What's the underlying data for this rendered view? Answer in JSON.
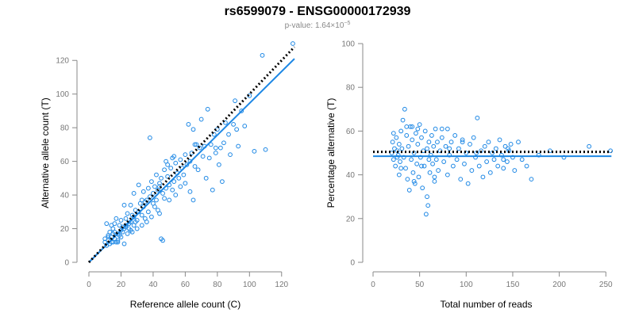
{
  "title": "rs6599079 - ENSG00000172939",
  "subtitle_prefix": "p-value: 1.64×10",
  "subtitle_exponent": "−5",
  "colors": {
    "points": "#1e88e5",
    "fit": "#1e88e5",
    "reference": "#000000",
    "axis": "#888888"
  },
  "chart_data": [
    {
      "type": "scatter",
      "xlabel": "Reference allele count (C)",
      "ylabel": "Alternative allele count (T)",
      "xlim": [
        0,
        130
      ],
      "ylim": [
        0,
        130
      ],
      "xticks": [
        "0",
        "20",
        "40",
        "60",
        "80",
        "100",
        "120"
      ],
      "yticks": [
        "0",
        "20",
        "40",
        "60",
        "80",
        "100",
        "120"
      ],
      "fit_line": {
        "from": [
          0,
          0
        ],
        "to": [
          128,
          121
        ]
      },
      "reference_line": {
        "from": [
          0,
          0
        ],
        "to": [
          128,
          128
        ]
      },
      "points": [
        [
          10,
          12
        ],
        [
          10,
          14
        ],
        [
          11,
          10
        ],
        [
          11,
          23
        ],
        [
          12,
          13
        ],
        [
          12,
          16
        ],
        [
          13,
          11
        ],
        [
          13,
          18
        ],
        [
          14,
          12
        ],
        [
          14,
          15
        ],
        [
          15,
          12
        ],
        [
          15,
          20
        ],
        [
          16,
          14
        ],
        [
          16,
          23
        ],
        [
          17,
          12
        ],
        [
          17,
          26
        ],
        [
          18,
          17
        ],
        [
          18,
          13
        ],
        [
          19,
          22
        ],
        [
          20,
          15
        ],
        [
          20,
          19
        ],
        [
          20,
          25
        ],
        [
          21,
          18
        ],
        [
          21,
          21
        ],
        [
          22,
          20
        ],
        [
          22,
          34
        ],
        [
          23,
          22
        ],
        [
          23,
          26
        ],
        [
          24,
          17
        ],
        [
          24,
          29
        ],
        [
          25,
          23
        ],
        [
          25,
          20
        ],
        [
          26,
          34
        ],
        [
          26,
          24
        ],
        [
          27,
          28
        ],
        [
          27,
          18
        ],
        [
          28,
          27
        ],
        [
          28,
          41
        ],
        [
          29,
          31
        ],
        [
          30,
          25
        ],
        [
          30,
          20
        ],
        [
          31,
          46
        ],
        [
          31,
          30
        ],
        [
          32,
          35
        ],
        [
          33,
          22
        ],
        [
          33,
          28
        ],
        [
          34,
          33
        ],
        [
          34,
          42
        ],
        [
          35,
          36
        ],
        [
          35,
          26
        ],
        [
          36,
          37
        ],
        [
          37,
          44
        ],
        [
          37,
          30
        ],
        [
          38,
          39
        ],
        [
          39,
          27
        ],
        [
          39,
          48
        ],
        [
          40,
          41
        ],
        [
          40,
          35
        ],
        [
          41,
          45
        ],
        [
          42,
          37
        ],
        [
          42,
          52
        ],
        [
          43,
          31
        ],
        [
          43,
          43
        ],
        [
          44,
          47
        ],
        [
          44,
          29
        ],
        [
          45,
          14
        ],
        [
          45,
          50
        ],
        [
          46,
          13
        ],
        [
          46,
          41
        ],
        [
          47,
          55
        ],
        [
          47,
          38
        ],
        [
          48,
          44
        ],
        [
          48,
          60
        ],
        [
          49,
          51
        ],
        [
          50,
          46
        ],
        [
          50,
          37
        ],
        [
          51,
          56
        ],
        [
          52,
          43
        ],
        [
          52,
          62
        ],
        [
          53,
          48
        ],
        [
          54,
          59
        ],
        [
          54,
          40
        ],
        [
          55,
          53
        ],
        [
          56,
          50
        ],
        [
          57,
          61
        ],
        [
          57,
          45
        ],
        [
          58,
          56
        ],
        [
          59,
          52
        ],
        [
          60,
          64
        ],
        [
          60,
          47
        ],
        [
          61,
          58
        ],
        [
          62,
          82
        ],
        [
          63,
          60
        ],
        [
          63,
          42
        ],
        [
          64,
          65
        ],
        [
          65,
          37
        ],
        [
          65,
          79
        ],
        [
          66,
          57
        ],
        [
          67,
          70
        ],
        [
          68,
          55
        ],
        [
          69,
          68
        ],
        [
          70,
          85
        ],
        [
          71,
          63
        ],
        [
          72,
          69
        ],
        [
          73,
          50
        ],
        [
          74,
          91
        ],
        [
          75,
          62
        ],
        [
          76,
          70
        ],
        [
          77,
          43
        ],
        [
          78,
          76
        ],
        [
          79,
          65
        ],
        [
          80,
          79
        ],
        [
          81,
          58
        ],
        [
          82,
          68
        ],
        [
          83,
          48
        ],
        [
          84,
          71
        ],
        [
          85,
          83
        ],
        [
          87,
          76
        ],
        [
          88,
          64
        ],
        [
          90,
          82
        ],
        [
          91,
          96
        ],
        [
          92,
          79
        ],
        [
          93,
          69
        ],
        [
          95,
          90
        ],
        [
          97,
          81
        ],
        [
          100,
          99
        ],
        [
          103,
          66
        ],
        [
          108,
          123
        ],
        [
          110,
          67
        ],
        [
          127,
          130
        ],
        [
          38,
          74
        ],
        [
          53,
          63
        ],
        [
          66,
          70
        ],
        [
          79,
          68
        ],
        [
          44,
          45
        ],
        [
          36,
          24
        ],
        [
          28,
          22
        ],
        [
          22,
          11
        ],
        [
          18,
          12
        ],
        [
          15,
          17
        ],
        [
          12,
          15
        ],
        [
          14,
          22
        ],
        [
          16,
          18
        ],
        [
          19,
          16
        ],
        [
          23,
          21
        ],
        [
          26,
          19
        ],
        [
          29,
          24
        ],
        [
          33,
          37
        ],
        [
          41,
          33
        ],
        [
          49,
          58
        ]
      ]
    },
    {
      "type": "scatter",
      "xlabel": "Total number of reads",
      "ylabel": "Percentage alternative (T)",
      "xlim": [
        0,
        260
      ],
      "ylim": [
        0,
        100
      ],
      "xticks": [
        "0",
        "50",
        "100",
        "150",
        "200",
        "250"
      ],
      "yticks": [
        "0",
        "20",
        "40",
        "60",
        "80",
        "100"
      ],
      "fit_line": {
        "from": [
          0,
          48.5
        ],
        "to": [
          256,
          48.5
        ]
      },
      "reference_line": {
        "from": [
          0,
          50.5
        ],
        "to": [
          256,
          50.5
        ]
      },
      "points": [
        [
          20,
          50
        ],
        [
          21,
          55
        ],
        [
          22,
          47
        ],
        [
          23,
          52
        ],
        [
          24,
          44
        ],
        [
          25,
          57
        ],
        [
          26,
          51
        ],
        [
          27,
          49
        ],
        [
          28,
          54
        ],
        [
          29,
          46
        ],
        [
          30,
          60
        ],
        [
          31,
          52
        ],
        [
          32,
          65
        ],
        [
          33,
          48
        ],
        [
          34,
          70
        ],
        [
          35,
          43
        ],
        [
          36,
          58
        ],
        [
          37,
          38
        ],
        [
          38,
          53
        ],
        [
          39,
          33
        ],
        [
          40,
          62
        ],
        [
          41,
          47
        ],
        [
          42,
          56
        ],
        [
          43,
          41
        ],
        [
          44,
          50
        ],
        [
          45,
          36
        ],
        [
          46,
          59
        ],
        [
          47,
          45
        ],
        [
          48,
          54
        ],
        [
          49,
          39
        ],
        [
          50,
          63
        ],
        [
          51,
          48
        ],
        [
          52,
          57
        ],
        [
          53,
          34
        ],
        [
          54,
          51
        ],
        [
          55,
          44
        ],
        [
          56,
          60
        ],
        [
          57,
          22
        ],
        [
          58,
          52
        ],
        [
          59,
          26
        ],
        [
          60,
          55
        ],
        [
          61,
          41
        ],
        [
          62,
          49
        ],
        [
          63,
          58
        ],
        [
          64,
          45
        ],
        [
          65,
          53
        ],
        [
          66,
          37
        ],
        [
          67,
          61
        ],
        [
          68,
          47
        ],
        [
          69,
          55
        ],
        [
          70,
          42
        ],
        [
          72,
          51
        ],
        [
          74,
          57
        ],
        [
          76,
          46
        ],
        [
          78,
          53
        ],
        [
          80,
          40
        ],
        [
          82,
          49
        ],
        [
          84,
          55
        ],
        [
          86,
          44
        ],
        [
          88,
          58
        ],
        [
          90,
          47
        ],
        [
          92,
          52
        ],
        [
          94,
          38
        ],
        [
          96,
          56
        ],
        [
          98,
          45
        ],
        [
          100,
          50
        ],
        [
          102,
          36
        ],
        [
          104,
          54
        ],
        [
          106,
          42
        ],
        [
          108,
          57
        ],
        [
          110,
          48
        ],
        [
          112,
          66
        ],
        [
          114,
          44
        ],
        [
          116,
          51
        ],
        [
          118,
          39
        ],
        [
          120,
          53
        ],
        [
          122,
          46
        ],
        [
          124,
          55
        ],
        [
          126,
          41
        ],
        [
          128,
          50
        ],
        [
          130,
          47
        ],
        [
          132,
          52
        ],
        [
          134,
          44
        ],
        [
          136,
          56
        ],
        [
          138,
          49
        ],
        [
          140,
          43
        ],
        [
          142,
          53
        ],
        [
          144,
          46
        ],
        [
          146,
          51
        ],
        [
          148,
          54
        ],
        [
          150,
          48
        ],
        [
          152,
          42
        ],
        [
          156,
          55
        ],
        [
          160,
          47
        ],
        [
          165,
          44
        ],
        [
          170,
          38
        ],
        [
          178,
          49
        ],
        [
          190,
          51
        ],
        [
          205,
          48
        ],
        [
          232,
          53
        ],
        [
          255,
          51
        ],
        [
          22,
          59
        ],
        [
          28,
          40
        ],
        [
          36,
          62
        ],
        [
          44,
          37
        ],
        [
          52,
          44
        ],
        [
          58,
          30
        ],
        [
          66,
          39
        ],
        [
          74,
          61
        ],
        [
          82,
          52
        ],
        [
          26,
          48
        ],
        [
          30,
          43
        ],
        [
          42,
          62
        ],
        [
          48,
          61
        ],
        [
          60,
          47
        ],
        [
          80,
          61
        ],
        [
          96,
          55
        ],
        [
          140,
          47
        ],
        [
          145,
          52
        ],
        [
          111,
          50
        ]
      ]
    }
  ]
}
